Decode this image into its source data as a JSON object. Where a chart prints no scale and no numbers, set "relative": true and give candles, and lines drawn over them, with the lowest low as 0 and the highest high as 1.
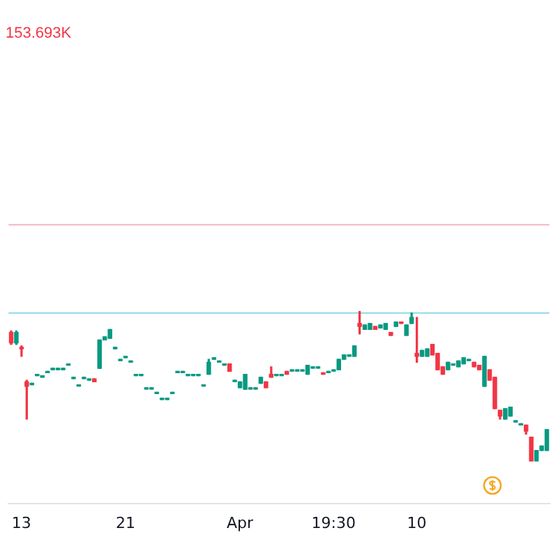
{
  "chart_data": {
    "type": "candlestick",
    "relative": true,
    "grid": false,
    "legend": false,
    "annotations": [
      "153.693K"
    ],
    "ref_lines": [
      {
        "axis": "y",
        "value": 1.58,
        "color": "#f7b3c2"
      },
      {
        "axis": "y",
        "value": 0.99,
        "color": "#8fd8e8"
      }
    ],
    "categories": [
      null,
      null,
      "13",
      null,
      null,
      null,
      null,
      null,
      null,
      null,
      null,
      null,
      null,
      null,
      null,
      null,
      null,
      null,
      null,
      null,
      null,
      null,
      "21",
      null,
      null,
      null,
      null,
      null,
      null,
      null,
      null,
      null,
      null,
      null,
      null,
      null,
      null,
      null,
      null,
      null,
      null,
      null,
      null,
      null,
      "Apr",
      null,
      null,
      null,
      null,
      null,
      null,
      null,
      null,
      null,
      null,
      null,
      null,
      null,
      null,
      null,
      null,
      null,
      "19:30",
      null,
      null,
      null,
      null,
      null,
      null,
      null,
      null,
      null,
      null,
      null,
      null,
      null,
      null,
      null,
      "10",
      null,
      null,
      null,
      null,
      null,
      null,
      null,
      null,
      null,
      null,
      null,
      null,
      null,
      null,
      null,
      null,
      null,
      null,
      null,
      null,
      null,
      null,
      null,
      null,
      null
    ],
    "ohlc": [
      [
        0.86,
        0.87,
        0.78,
        0.79
      ],
      [
        0.79,
        0.87,
        0.78,
        0.86
      ],
      [
        0.76,
        0.77,
        0.7,
        0.75
      ],
      [
        0.53,
        0.54,
        0.28,
        0.5
      ],
      [
        0.52,
        0.52,
        0.52,
        0.52
      ],
      [
        0.58,
        0.58,
        0.58,
        0.58
      ],
      [
        0.57,
        0.57,
        0.57,
        0.57
      ],
      [
        0.6,
        0.6,
        0.6,
        0.6
      ],
      [
        0.62,
        0.62,
        0.62,
        0.62
      ],
      [
        0.62,
        0.62,
        0.62,
        0.62
      ],
      [
        0.62,
        0.62,
        0.62,
        0.62
      ],
      [
        0.65,
        0.65,
        0.65,
        0.65
      ],
      [
        0.56,
        0.56,
        0.56,
        0.56
      ],
      [
        0.51,
        0.51,
        0.51,
        0.51
      ],
      [
        0.56,
        0.56,
        0.56,
        0.56
      ],
      [
        0.55,
        0.55,
        0.55,
        0.55
      ],
      [
        0.55,
        0.55,
        0.53,
        0.53
      ],
      [
        0.62,
        0.81,
        0.62,
        0.81
      ],
      [
        0.81,
        0.83,
        0.81,
        0.83
      ],
      [
        0.82,
        0.88,
        0.82,
        0.88
      ],
      [
        0.76,
        0.76,
        0.76,
        0.76
      ],
      [
        0.68,
        0.68,
        0.68,
        0.68
      ],
      [
        0.7,
        0.7,
        0.7,
        0.7
      ],
      [
        0.67,
        0.67,
        0.67,
        0.67
      ],
      [
        0.58,
        0.58,
        0.58,
        0.58
      ],
      [
        0.58,
        0.58,
        0.58,
        0.58
      ],
      [
        0.49,
        0.49,
        0.49,
        0.49
      ],
      [
        0.49,
        0.49,
        0.49,
        0.49
      ],
      [
        0.46,
        0.46,
        0.46,
        0.46
      ],
      [
        0.42,
        0.42,
        0.42,
        0.42
      ],
      [
        0.42,
        0.42,
        0.42,
        0.42
      ],
      [
        0.46,
        0.46,
        0.46,
        0.46
      ],
      [
        0.6,
        0.6,
        0.6,
        0.6
      ],
      [
        0.6,
        0.6,
        0.6,
        0.6
      ],
      [
        0.58,
        0.58,
        0.58,
        0.58
      ],
      [
        0.58,
        0.58,
        0.58,
        0.58
      ],
      [
        0.58,
        0.58,
        0.58,
        0.58
      ],
      [
        0.51,
        0.51,
        0.51,
        0.51
      ],
      [
        0.58,
        0.68,
        0.58,
        0.66
      ],
      [
        0.69,
        0.69,
        0.69,
        0.69
      ],
      [
        0.67,
        0.67,
        0.67,
        0.67
      ],
      [
        0.65,
        0.65,
        0.65,
        0.65
      ],
      [
        0.65,
        0.65,
        0.6,
        0.6
      ],
      [
        0.54,
        0.54,
        0.54,
        0.54
      ],
      [
        0.49,
        0.53,
        0.49,
        0.53
      ],
      [
        0.48,
        0.58,
        0.48,
        0.58
      ],
      [
        0.49,
        0.49,
        0.49,
        0.49
      ],
      [
        0.49,
        0.49,
        0.49,
        0.49
      ],
      [
        0.52,
        0.56,
        0.52,
        0.56
      ],
      [
        0.53,
        0.53,
        0.49,
        0.49
      ],
      [
        0.58,
        0.63,
        0.56,
        0.56
      ],
      [
        0.58,
        0.58,
        0.58,
        0.58
      ],
      [
        0.58,
        0.58,
        0.58,
        0.58
      ],
      [
        0.6,
        0.6,
        0.58,
        0.58
      ],
      [
        0.61,
        0.61,
        0.61,
        0.61
      ],
      [
        0.61,
        0.61,
        0.61,
        0.61
      ],
      [
        0.61,
        0.61,
        0.61,
        0.61
      ],
      [
        0.58,
        0.64,
        0.58,
        0.64
      ],
      [
        0.63,
        0.63,
        0.63,
        0.63
      ],
      [
        0.63,
        0.63,
        0.63,
        0.63
      ],
      [
        0.59,
        0.59,
        0.58,
        0.58
      ],
      [
        0.6,
        0.6,
        0.6,
        0.6
      ],
      [
        0.61,
        0.61,
        0.61,
        0.61
      ],
      [
        0.61,
        0.68,
        0.61,
        0.68
      ],
      [
        0.68,
        0.71,
        0.68,
        0.71
      ],
      [
        0.71,
        0.71,
        0.71,
        0.71
      ],
      [
        0.7,
        0.77,
        0.7,
        0.77
      ],
      [
        0.92,
        1,
        0.85,
        0.9
      ],
      [
        0.88,
        0.91,
        0.88,
        0.91
      ],
      [
        0.88,
        0.92,
        0.88,
        0.92
      ],
      [
        0.9,
        0.9,
        0.88,
        0.88
      ],
      [
        0.89,
        0.91,
        0.89,
        0.91
      ],
      [
        0.88,
        0.92,
        0.88,
        0.92
      ],
      [
        0.86,
        0.86,
        0.84,
        0.84
      ],
      [
        0.9,
        0.93,
        0.9,
        0.93
      ],
      [
        0.93,
        0.93,
        0.92,
        0.92
      ],
      [
        0.84,
        0.91,
        0.84,
        0.91
      ],
      [
        0.92,
        0.99,
        0.92,
        0.96
      ],
      [
        0.72,
        0.96,
        0.66,
        0.7
      ],
      [
        0.7,
        0.74,
        0.7,
        0.74
      ],
      [
        0.7,
        0.75,
        0.7,
        0.75
      ],
      [
        0.78,
        0.78,
        0.71,
        0.71
      ],
      [
        0.72,
        0.72,
        0.61,
        0.61
      ],
      [
        0.63,
        0.63,
        0.58,
        0.58
      ],
      [
        0.61,
        0.66,
        0.61,
        0.66
      ],
      [
        0.65,
        0.65,
        0.65,
        0.65
      ],
      [
        0.63,
        0.67,
        0.63,
        0.67
      ],
      [
        0.65,
        0.69,
        0.65,
        0.69
      ],
      [
        0.68,
        0.68,
        0.68,
        0.68
      ],
      [
        0.66,
        0.66,
        0.63,
        0.63
      ],
      [
        0.64,
        0.64,
        0.61,
        0.61
      ],
      [
        0.5,
        0.7,
        0.5,
        0.7
      ],
      [
        0.61,
        0.61,
        0.54,
        0.54
      ],
      [
        0.56,
        0.56,
        0.35,
        0.35
      ],
      [
        0.34,
        0.34,
        0.28,
        0.3
      ],
      [
        0.28,
        0.35,
        0.28,
        0.35
      ],
      [
        0.3,
        0.36,
        0.3,
        0.36
      ],
      [
        0.27,
        0.27,
        0.27,
        0.27
      ],
      [
        0.25,
        0.25,
        0.25,
        0.25
      ],
      [
        0.24,
        0.24,
        0.18,
        0.2
      ],
      [
        0.16,
        0.16,
        0,
        0
      ],
      [
        0,
        0.07,
        0,
        0.07
      ],
      [
        0.07,
        0.1,
        0.07,
        0.1
      ],
      [
        0.07,
        0.21,
        0.07,
        0.21
      ]
    ]
  }
}
